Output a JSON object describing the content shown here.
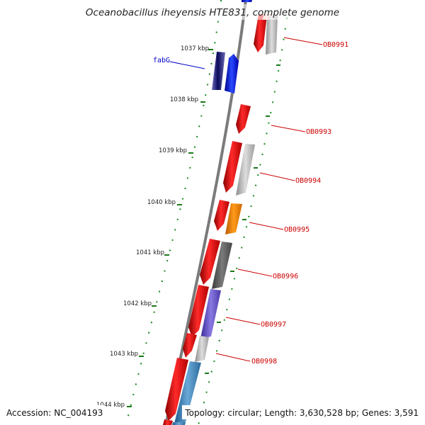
{
  "map": {
    "title": "Oceanobacillus iheyensis HTE831, complete genome",
    "accession": "Accession: NC_004193",
    "summary": "Topology: circular; Length: 3,630,528 bp; Genes: 3,591",
    "colors": {
      "backbone": "#7a7a7a",
      "tick": "#1a7a1a",
      "forward_gene": "#e8141e",
      "gene_label": "#cc0000",
      "named_gene_label": "#0000cc",
      "gc_dot": "#1a8a1a"
    },
    "scale_ticks": [
      {
        "label": "1037 kbp"
      },
      {
        "label": "1038 kbp"
      },
      {
        "label": "1039 kbp"
      },
      {
        "label": "1040 kbp"
      },
      {
        "label": "1041 kbp"
      },
      {
        "label": "1042 kbp"
      },
      {
        "label": "1043 kbp"
      },
      {
        "label": "1044 kbp"
      }
    ],
    "gene_labels": [
      {
        "name": "fabG",
        "color": "#0000cc"
      },
      {
        "name": "OB0991",
        "color": "#cc0000"
      },
      {
        "name": "OB0993",
        "color": "#cc0000"
      },
      {
        "name": "OB0994",
        "color": "#cc0000"
      },
      {
        "name": "OB0995",
        "color": "#cc0000"
      },
      {
        "name": "OB0996",
        "color": "#cc0000"
      },
      {
        "name": "OB0997",
        "color": "#cc0000"
      },
      {
        "name": "OB0998",
        "color": "#cc0000"
      }
    ]
  }
}
